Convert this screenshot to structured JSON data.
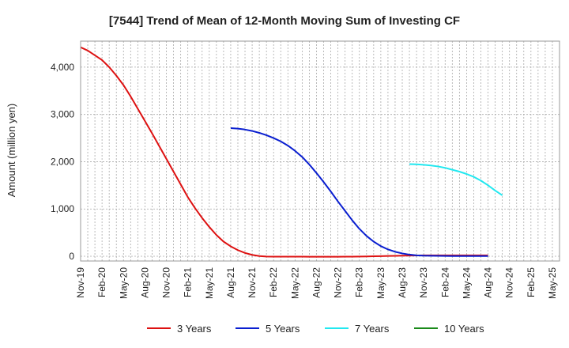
{
  "chart_data": {
    "type": "line",
    "title": "[7544]  Trend of Mean of 12-Month Moving Sum of Investing CF",
    "xlabel": "",
    "ylabel": "Amount (million yen)",
    "ylim": [
      -100,
      4550
    ],
    "yticks": [
      0,
      1000,
      2000,
      3000,
      4000
    ],
    "ytick_labels": [
      "0",
      "1,000",
      "2,000",
      "3,000",
      "4,000"
    ],
    "x_start": "Nov-19",
    "x_months": 67,
    "xtick_labels": [
      "Nov-19",
      "Feb-20",
      "May-20",
      "Aug-20",
      "Nov-20",
      "Feb-21",
      "May-21",
      "Aug-21",
      "Nov-21",
      "Feb-22",
      "May-22",
      "Aug-22",
      "Nov-22",
      "Feb-23",
      "May-23",
      "Aug-23",
      "Nov-23",
      "Feb-24",
      "May-24",
      "Aug-24",
      "Nov-24",
      "Feb-25",
      "May-25"
    ],
    "grid": true,
    "legend_position": "bottom",
    "series": [
      {
        "name": "3 Years",
        "color": "#dd1111",
        "start_index": 0,
        "values": [
          4420,
          4350,
          4250,
          4150,
          4000,
          3820,
          3620,
          3380,
          3120,
          2860,
          2600,
          2330,
          2060,
          1790,
          1520,
          1250,
          1020,
          810,
          620,
          450,
          310,
          210,
          130,
          70,
          30,
          5,
          -5,
          -8,
          -8,
          -8,
          -8,
          -9,
          -10,
          -10,
          -10,
          -10,
          -10,
          -9,
          -8,
          -6,
          -3,
          0,
          3,
          6,
          9,
          12,
          15,
          18,
          20,
          20,
          20,
          20,
          20,
          20,
          20,
          20,
          20,
          20
        ]
      },
      {
        "name": "5 Years",
        "color": "#0a1fd0",
        "start_index": 21,
        "values": [
          2710,
          2700,
          2680,
          2650,
          2610,
          2560,
          2500,
          2430,
          2340,
          2230,
          2100,
          1940,
          1760,
          1570,
          1370,
          1160,
          960,
          760,
          580,
          430,
          310,
          215,
          145,
          95,
          60,
          35,
          20,
          12,
          10,
          8,
          6,
          5,
          5,
          5,
          5,
          5,
          5
        ]
      },
      {
        "name": "7 Years",
        "color": "#22e8f0",
        "start_index": 46,
        "values": [
          1950,
          1945,
          1935,
          1920,
          1900,
          1870,
          1830,
          1790,
          1740,
          1680,
          1600,
          1500,
          1390,
          1290
        ]
      },
      {
        "name": "10 Years",
        "color": "#1a8a1a",
        "start_index": 67,
        "values": []
      }
    ]
  }
}
